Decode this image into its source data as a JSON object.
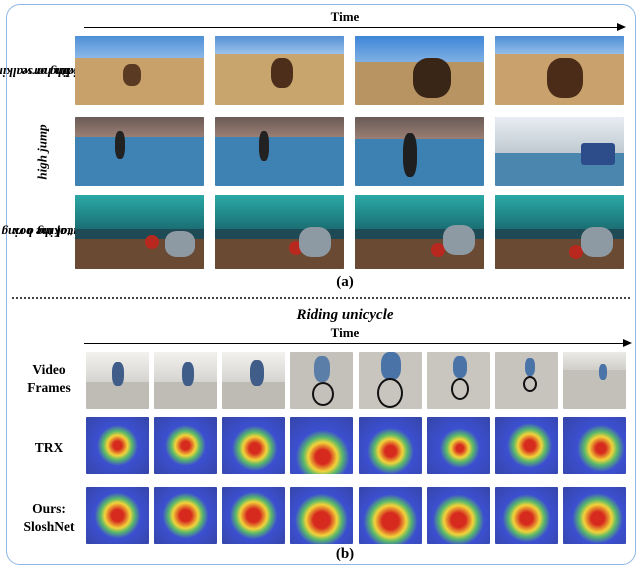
{
  "part_a": {
    "time_label": "Time",
    "rows": [
      {
        "label_line1": "riding or walking",
        "label_line2": "with horse"
      },
      {
        "label_line1": "high jump",
        "label_line2": ""
      },
      {
        "label_line1": "taking a ring",
        "label_line2": "out of the box"
      }
    ],
    "caption": "(a)"
  },
  "part_b": {
    "title": "Riding unicycle",
    "time_label": "Time",
    "rows": [
      {
        "label_line1": "Video",
        "label_line2": "Frames"
      },
      {
        "label_line1": "TRX",
        "label_line2": ""
      },
      {
        "label_line1": "Ours:",
        "label_line2": "SloshNet"
      }
    ],
    "caption": "(b)"
  },
  "colors": {
    "frame_border": "#8fb7e6",
    "heat_hot": "#d62a1e",
    "heat_warm": "#f2d43a",
    "heat_cool": "#3c4fd0"
  }
}
